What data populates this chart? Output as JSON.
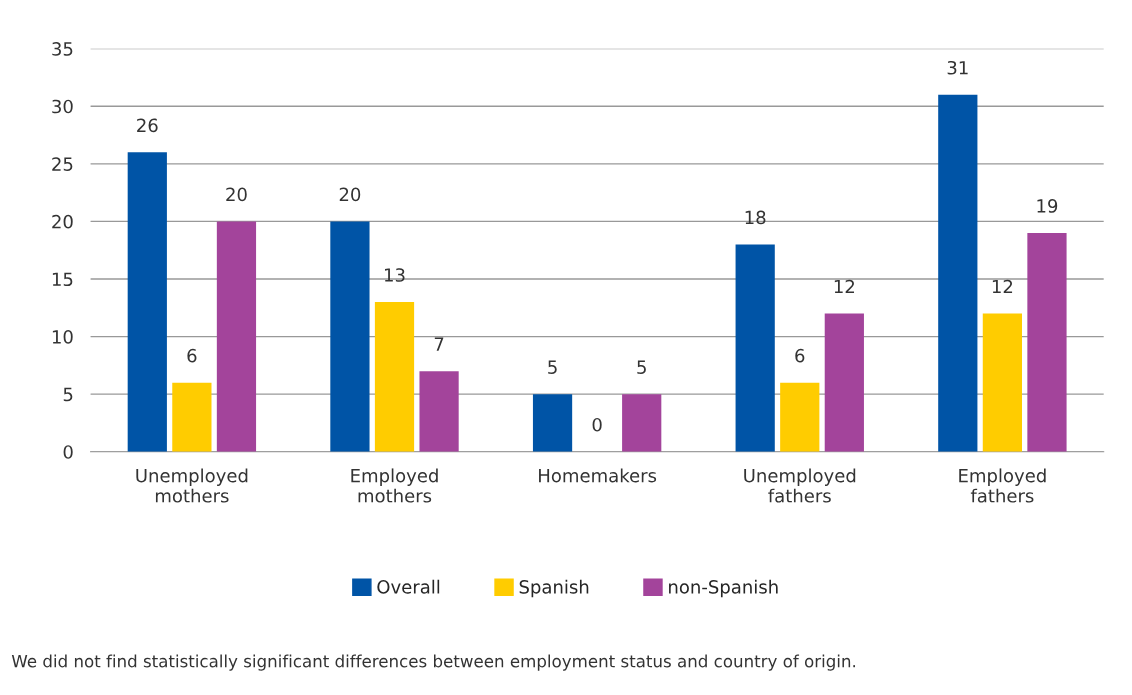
{
  "chart_data": {
    "type": "bar",
    "categories": [
      "Unemployed\nmothers",
      "Employed\nmothers",
      "Homemakers",
      "Unemployed\nfathers",
      "Employed\nfathers"
    ],
    "series": [
      {
        "name": "Overall",
        "color": "#0054a6",
        "values": [
          26,
          20,
          5,
          18,
          31
        ]
      },
      {
        "name": "Spanish",
        "color": "#ffcc00",
        "values": [
          6,
          13,
          0,
          6,
          12
        ]
      },
      {
        "name": "non-Spanish",
        "color": "#a3449b",
        "values": [
          20,
          7,
          5,
          12,
          19
        ]
      }
    ],
    "ylim": [
      0,
      35
    ],
    "yticks": [
      0,
      5,
      10,
      15,
      20,
      25,
      30,
      35
    ],
    "grid": "y",
    "legend": "bottom",
    "data_labels": true,
    "annotations": [
      "We did not find statistically significant differences between employment status and country of origin."
    ]
  }
}
